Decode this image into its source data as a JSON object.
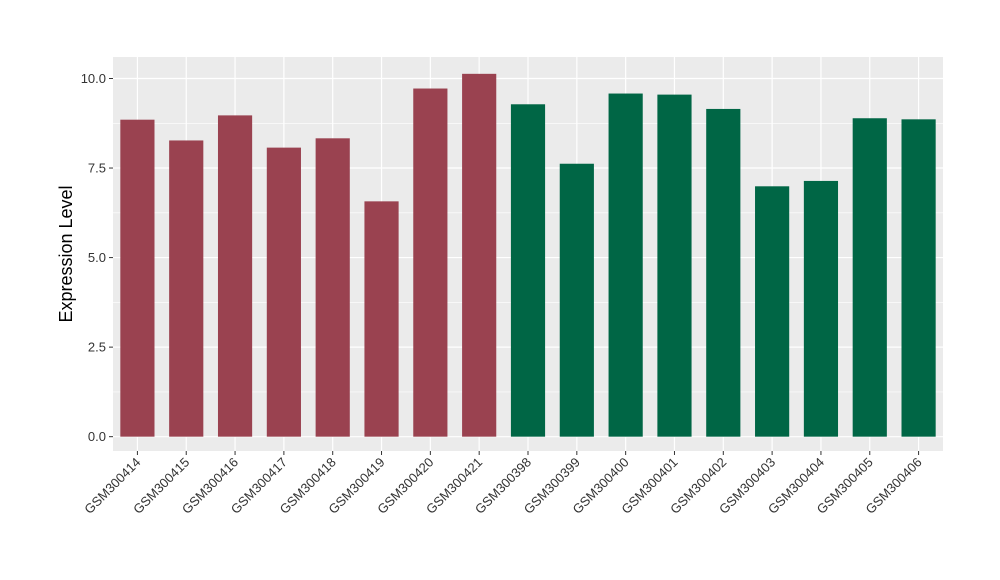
{
  "chart_data": {
    "type": "bar",
    "title": "",
    "xlabel": "",
    "ylabel": "Expression Level",
    "ylim": [
      -0.4,
      10.6
    ],
    "yticks": [
      0.0,
      2.5,
      5.0,
      7.5,
      10.0
    ],
    "ytick_labels": [
      "0.0",
      "2.5",
      "5.0",
      "7.5",
      "10.0"
    ],
    "grid": true,
    "legend": "none",
    "colors": {
      "group_a": "#9a4250",
      "group_b": "#006645",
      "panel": "#ebebeb",
      "grid": "#ffffff"
    },
    "categories": [
      "GSM300414",
      "GSM300415",
      "GSM300416",
      "GSM300417",
      "GSM300418",
      "GSM300419",
      "GSM300420",
      "GSM300421",
      "GSM300398",
      "GSM300399",
      "GSM300400",
      "GSM300401",
      "GSM300402",
      "GSM300403",
      "GSM300404",
      "GSM300405",
      "GSM300406"
    ],
    "values": [
      8.85,
      8.27,
      8.97,
      8.07,
      8.33,
      6.57,
      9.72,
      10.13,
      9.28,
      7.62,
      9.58,
      9.55,
      9.15,
      6.99,
      7.14,
      8.89,
      8.86
    ],
    "groups": [
      "a",
      "a",
      "a",
      "a",
      "a",
      "a",
      "a",
      "a",
      "b",
      "b",
      "b",
      "b",
      "b",
      "b",
      "b",
      "b",
      "b"
    ]
  }
}
